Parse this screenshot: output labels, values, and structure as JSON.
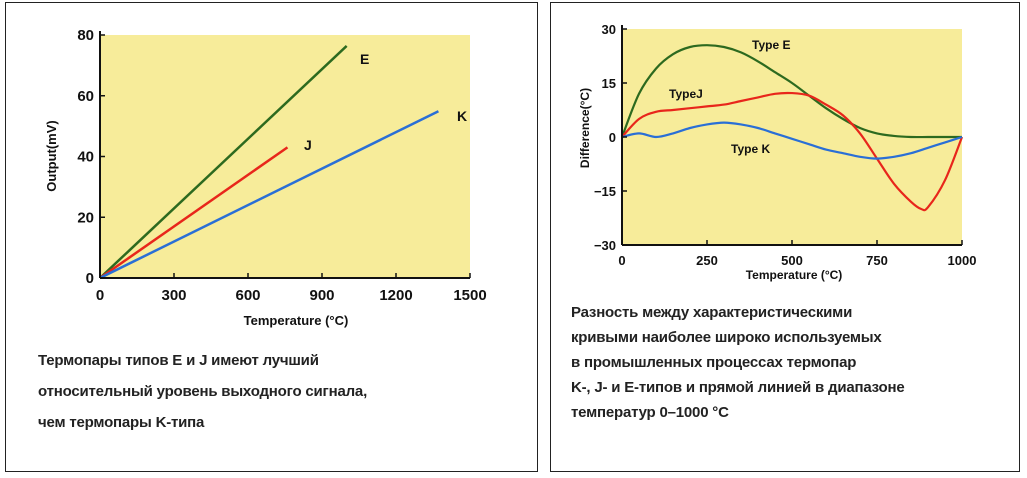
{
  "colors": {
    "plot_bg": "#f7ec9a",
    "type_e": "#2d6a1f",
    "type_j": "#e8261b",
    "type_k": "#2a6fd6",
    "axis": "#111111"
  },
  "chart_data": [
    {
      "type": "line",
      "xlabel": "Temperature (°C)",
      "ylabel": "Output(mV)",
      "xlim": [
        0,
        1500
      ],
      "ylim": [
        0,
        80
      ],
      "x_ticks": [
        0,
        300,
        600,
        900,
        1200,
        1500
      ],
      "y_ticks": [
        0,
        20,
        40,
        60,
        80
      ],
      "grid": false,
      "series": [
        {
          "name": "E",
          "x": [
            0,
            1000
          ],
          "y": [
            0,
            76.4
          ],
          "color": "#2d6a1f"
        },
        {
          "name": "J",
          "x": [
            0,
            760
          ],
          "y": [
            0,
            43.0
          ],
          "color": "#e8261b"
        },
        {
          "name": "K",
          "x": [
            0,
            1372
          ],
          "y": [
            0,
            54.9
          ],
          "color": "#2a6fd6"
        }
      ]
    },
    {
      "type": "line",
      "xlabel": "Temperature (°C)",
      "ylabel": "Difference(°C)",
      "xlim": [
        0,
        1000
      ],
      "ylim": [
        -30,
        30
      ],
      "x_ticks": [
        0,
        250,
        500,
        750,
        1000
      ],
      "y_ticks": [
        30,
        15,
        0,
        -15,
        -30
      ],
      "grid": false,
      "series": [
        {
          "name": "Type E",
          "color": "#2d6a1f",
          "x": [
            0,
            50,
            100,
            150,
            200,
            250,
            300,
            350,
            400,
            450,
            500,
            550,
            600,
            650,
            700,
            750,
            800,
            850,
            900,
            950,
            1000
          ],
          "y": [
            0,
            12,
            19,
            23,
            25,
            25.5,
            25,
            23.5,
            21,
            18,
            15,
            11.5,
            8,
            5,
            2.5,
            1,
            0.3,
            0,
            0,
            0,
            0
          ]
        },
        {
          "name": "TypeJ",
          "color": "#e8261b",
          "x": [
            0,
            50,
            100,
            150,
            200,
            250,
            300,
            350,
            400,
            450,
            500,
            550,
            600,
            650,
            700,
            750,
            800,
            850,
            880,
            900,
            950,
            1000
          ],
          "y": [
            0,
            5,
            7,
            7.5,
            8,
            8.5,
            9,
            10,
            11,
            12,
            12.2,
            11.5,
            9,
            6,
            1,
            -6,
            -13,
            -18,
            -20,
            -19.5,
            -12,
            0
          ],
          "label": "TypeJ"
        },
        {
          "name": "Type K",
          "color": "#2a6fd6",
          "x": [
            0,
            50,
            100,
            150,
            200,
            250,
            300,
            350,
            400,
            450,
            500,
            550,
            600,
            650,
            700,
            750,
            800,
            850,
            900,
            950,
            1000
          ],
          "y": [
            0,
            1,
            0,
            1,
            2.5,
            3.5,
            4,
            3.5,
            2.5,
            1,
            -0.5,
            -2,
            -3.5,
            -4.5,
            -5.5,
            -6,
            -5.5,
            -4.5,
            -3,
            -1.5,
            0
          ]
        }
      ]
    }
  ],
  "left_labels": {
    "e": "E",
    "j": "J",
    "k": "K"
  },
  "right_labels": {
    "e": "Type E",
    "j": "TypeJ",
    "k": "Type K"
  },
  "captions": {
    "left": [
      "Термопары типов E и J имеют лучший",
      "относительный уровень выходного сигнала,",
      "чем термопары K-типа"
    ],
    "right": [
      "Разность между характеристическими",
      "кривыми наиболее широко используемых",
      "в промышленных процессах термопар",
      "K-, J- и E-типов и прямой линией в диапазоне",
      "температур 0–1000 °C"
    ]
  }
}
